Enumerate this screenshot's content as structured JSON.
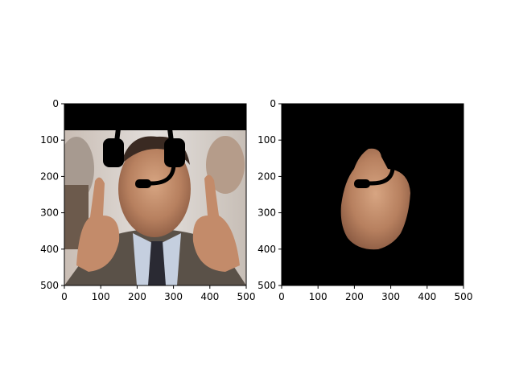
{
  "figure": {
    "background": "#ffffff"
  },
  "chart_data": [
    {
      "type": "image",
      "panel": "left",
      "description_icon": "photo-with-headset-overlay",
      "xlim": [
        0,
        500
      ],
      "ylim": [
        500,
        0
      ],
      "xticks": [
        0,
        100,
        200,
        300,
        400,
        500
      ],
      "yticks": [
        0,
        100,
        200,
        300,
        400,
        500
      ],
      "colors": {
        "frame": "#000000",
        "black_band": "#000000",
        "background_top": "#000000"
      }
    },
    {
      "type": "image",
      "panel": "right",
      "description_icon": "segmented-face-mask",
      "xlim": [
        0,
        500
      ],
      "ylim": [
        500,
        0
      ],
      "xticks": [
        0,
        100,
        200,
        300,
        400,
        500
      ],
      "yticks": [
        0,
        100,
        200,
        300,
        400,
        500
      ],
      "colors": {
        "frame": "#000000",
        "background": "#000000"
      }
    }
  ]
}
